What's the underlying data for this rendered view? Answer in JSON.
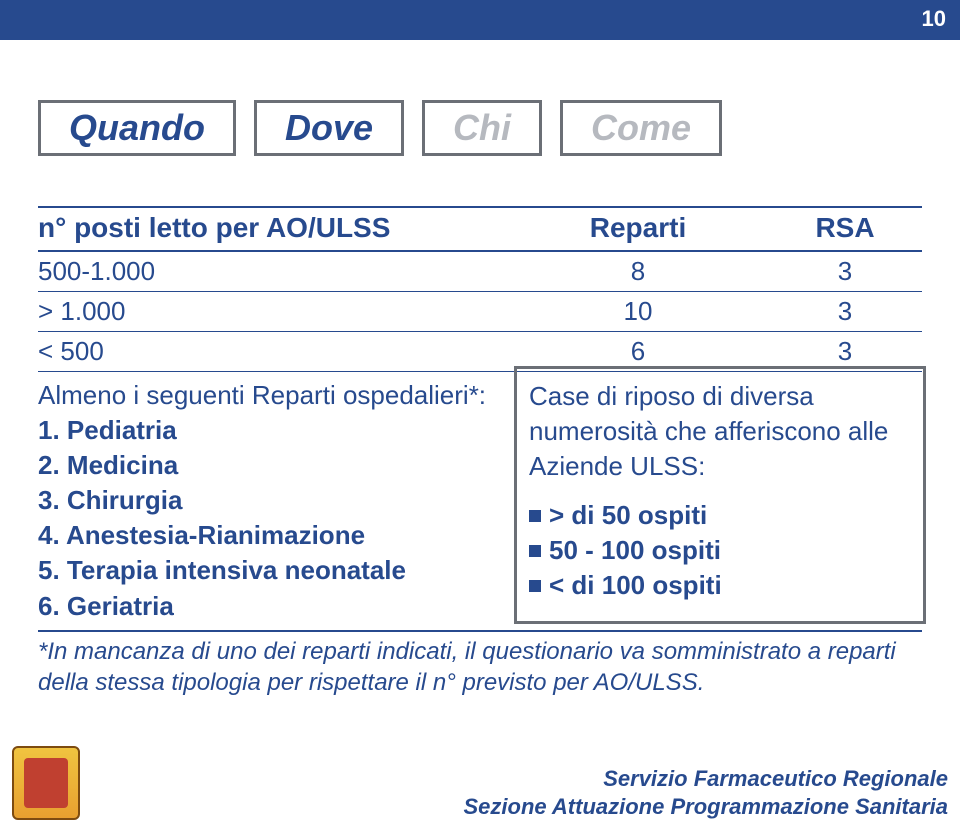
{
  "page_number": "10",
  "colors": {
    "brand": "#274a8e",
    "box_border": "#6b6f76",
    "inactive_text": "#b6b9bf",
    "background": "#ffffff"
  },
  "typography": {
    "box_fontsize": 36,
    "header_fontsize": 28,
    "row_fontsize": 26,
    "footnote_fontsize": 24,
    "footer_fontsize": 22
  },
  "tabs": {
    "items": [
      {
        "label": "Quando",
        "active": true
      },
      {
        "label": "Dove",
        "active": true
      },
      {
        "label": "Chi",
        "active": false
      },
      {
        "label": "Come",
        "active": false
      }
    ]
  },
  "table": {
    "headers": {
      "c1": "n° posti letto per AO/ULSS",
      "c2": "Reparti",
      "c3": "RSA"
    },
    "rows": [
      {
        "c1": "500-1.000",
        "c2": "8",
        "c3": "3"
      },
      {
        "c1": "> 1.000",
        "c2": "10",
        "c3": "3"
      },
      {
        "c1": "< 500",
        "c2": "6",
        "c3": "3"
      }
    ]
  },
  "details": {
    "left_title": "Almeno i seguenti Reparti ospedalieri*:",
    "left_items": [
      "1. Pediatria",
      "2. Medicina",
      "3. Chirurgia",
      "4. Anestesia-Rianimazione",
      "5. Terapia intensiva neonatale",
      "6. Geriatria"
    ],
    "right_intro": "Case di riposo di diversa numerosità che afferiscono alle Aziende ULSS:",
    "right_bullets": [
      "> di 50 ospiti",
      "50 - 100 ospiti",
      "< di 100 ospiti"
    ]
  },
  "footnote": "*In mancanza di uno dei reparti indicati, il questionario va somministrato a reparti della stessa tipologia per rispettare il n° previsto per AO/ULSS.",
  "footer": {
    "line1": "Servizio Farmaceutico Regionale",
    "line2": "Sezione Attuazione Programmazione Sanitaria"
  }
}
